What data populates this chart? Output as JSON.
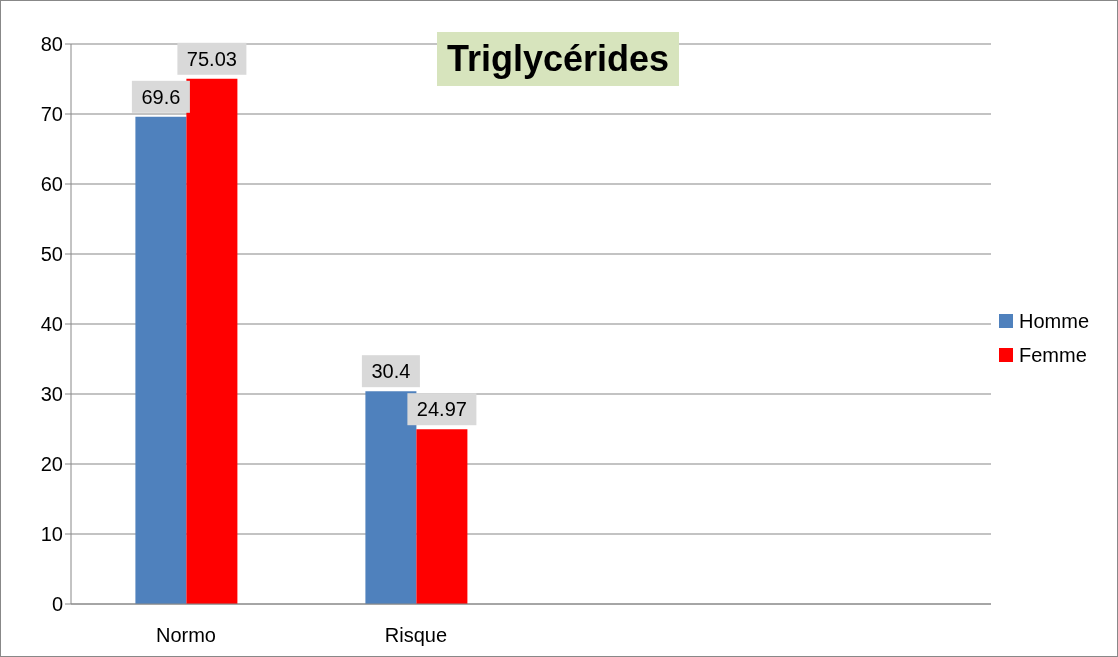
{
  "chart_data": {
    "type": "bar",
    "title": "Triglycérides",
    "categories": [
      "Normo",
      "Risque",
      null,
      null
    ],
    "series": [
      {
        "name": "Homme",
        "color": "#4f81bd",
        "values": [
          69.6,
          30.4,
          null,
          null
        ]
      },
      {
        "name": "Femme",
        "color": "#ff0000",
        "values": [
          75.03,
          24.97,
          null,
          null
        ]
      }
    ],
    "ylim": [
      0,
      80
    ],
    "yticks": [
      0,
      10,
      20,
      30,
      40,
      50,
      60,
      70,
      80
    ],
    "grid": "y",
    "legend": "right",
    "data_labels": true
  }
}
